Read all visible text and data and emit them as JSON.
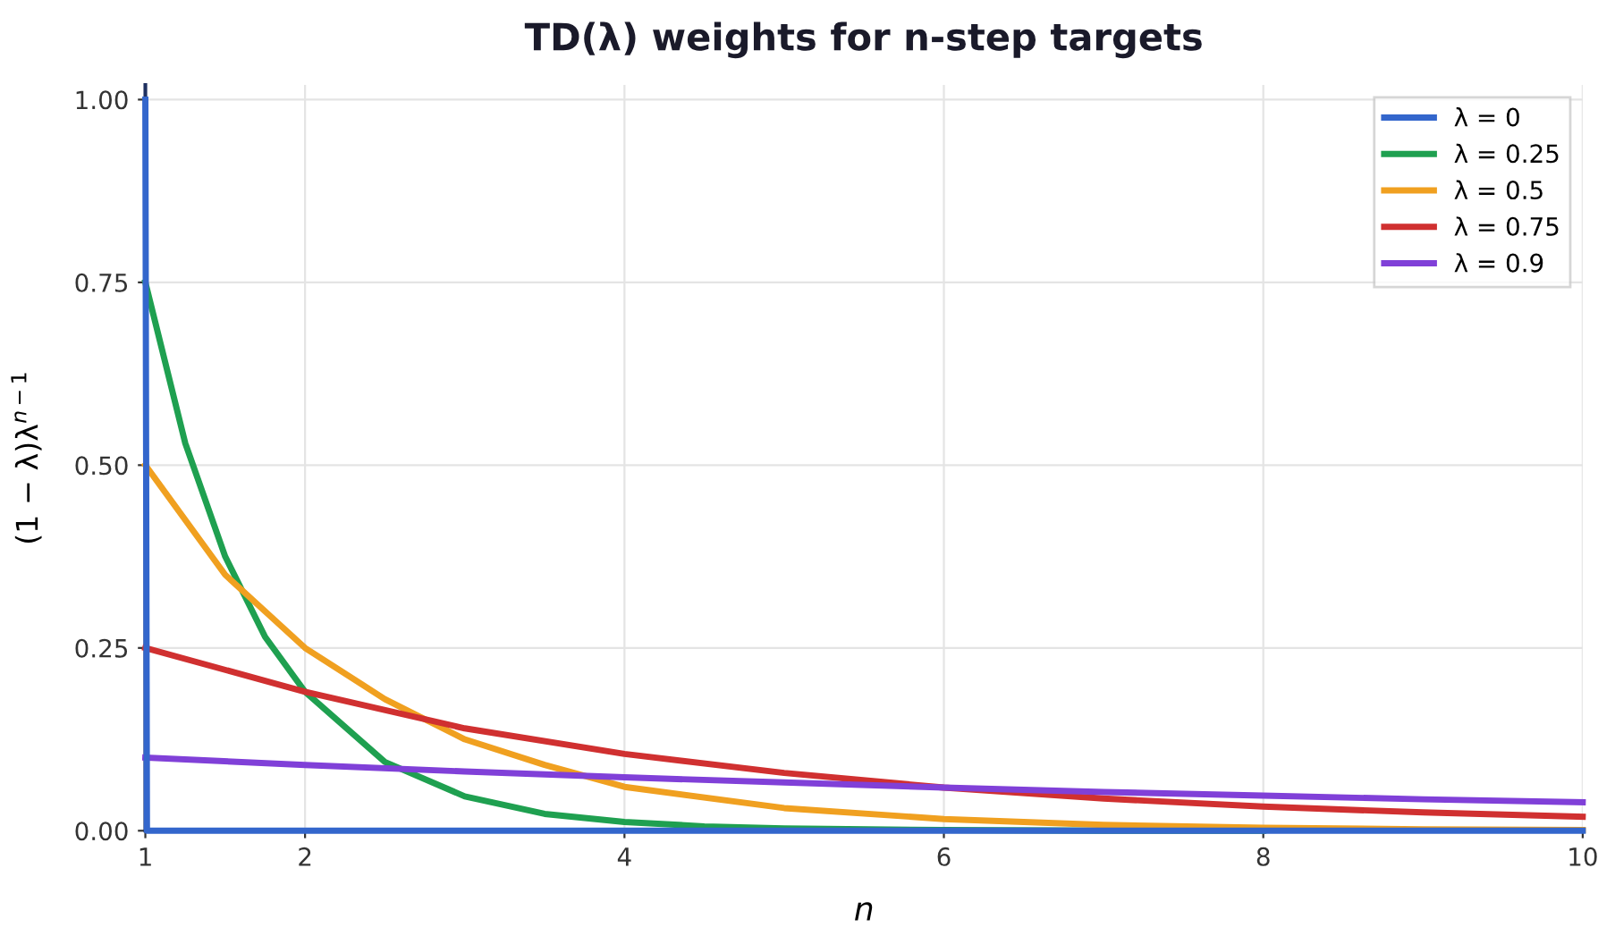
{
  "chart_data": {
    "type": "line",
    "title": "TD(λ) weights for n-step targets",
    "xlabel": "n",
    "ylabel": "(1 − λ)λ$^{n−1}$",
    "xlim": [
      1,
      10
    ],
    "ylim": [
      0,
      1.02
    ],
    "xticks": [
      1,
      2,
      4,
      6,
      8,
      10
    ],
    "yticks": [
      {
        "value": 0,
        "label": "0.00"
      },
      {
        "value": 0.25,
        "label": "0.25"
      },
      {
        "value": 0.5,
        "label": "0.50"
      },
      {
        "value": 0.75,
        "label": "0.75"
      },
      {
        "value": 1,
        "label": "1.00"
      }
    ],
    "grid": true,
    "legend": "top right",
    "marker": "none",
    "line_style": "solid",
    "series": [
      {
        "name": "λ = 0",
        "color": "#3366cc",
        "x": [
          1,
          1.01,
          10
        ],
        "values": [
          1,
          0,
          0
        ]
      },
      {
        "name": "λ = 0.25",
        "color": "#1fa050",
        "x": [
          1,
          1.25,
          1.5,
          1.75,
          2,
          2.5,
          3,
          3.5,
          4,
          4.5,
          5,
          6,
          7,
          8
        ],
        "values": [
          0.75,
          0.53,
          0.375,
          0.265,
          0.19,
          0.094,
          0.047,
          0.023,
          0.012,
          0.006,
          0.003,
          0.001,
          0,
          0
        ]
      },
      {
        "name": "λ = 0.5",
        "color": "#f0a020",
        "x": [
          1,
          1.5,
          2,
          2.5,
          3,
          3.5,
          4,
          5,
          6,
          7,
          8,
          9,
          10
        ],
        "values": [
          0.5,
          0.35,
          0.25,
          0.18,
          0.125,
          0.09,
          0.06,
          0.031,
          0.016,
          0.008,
          0.004,
          0.002,
          0.001
        ]
      },
      {
        "name": "λ = 0.75",
        "color": "#d03030",
        "x": [
          1,
          2,
          3,
          4,
          5,
          6,
          7,
          8,
          9,
          10
        ],
        "values": [
          0.25,
          0.19,
          0.14,
          0.105,
          0.079,
          0.059,
          0.044,
          0.033,
          0.025,
          0.019
        ]
      },
      {
        "name": "λ = 0.9",
        "color": "#8040d8",
        "x": [
          1,
          2,
          3,
          4,
          5,
          6,
          7,
          8,
          9,
          10
        ],
        "values": [
          0.1,
          0.09,
          0.081,
          0.073,
          0.066,
          0.059,
          0.053,
          0.048,
          0.043,
          0.039
        ]
      }
    ]
  }
}
